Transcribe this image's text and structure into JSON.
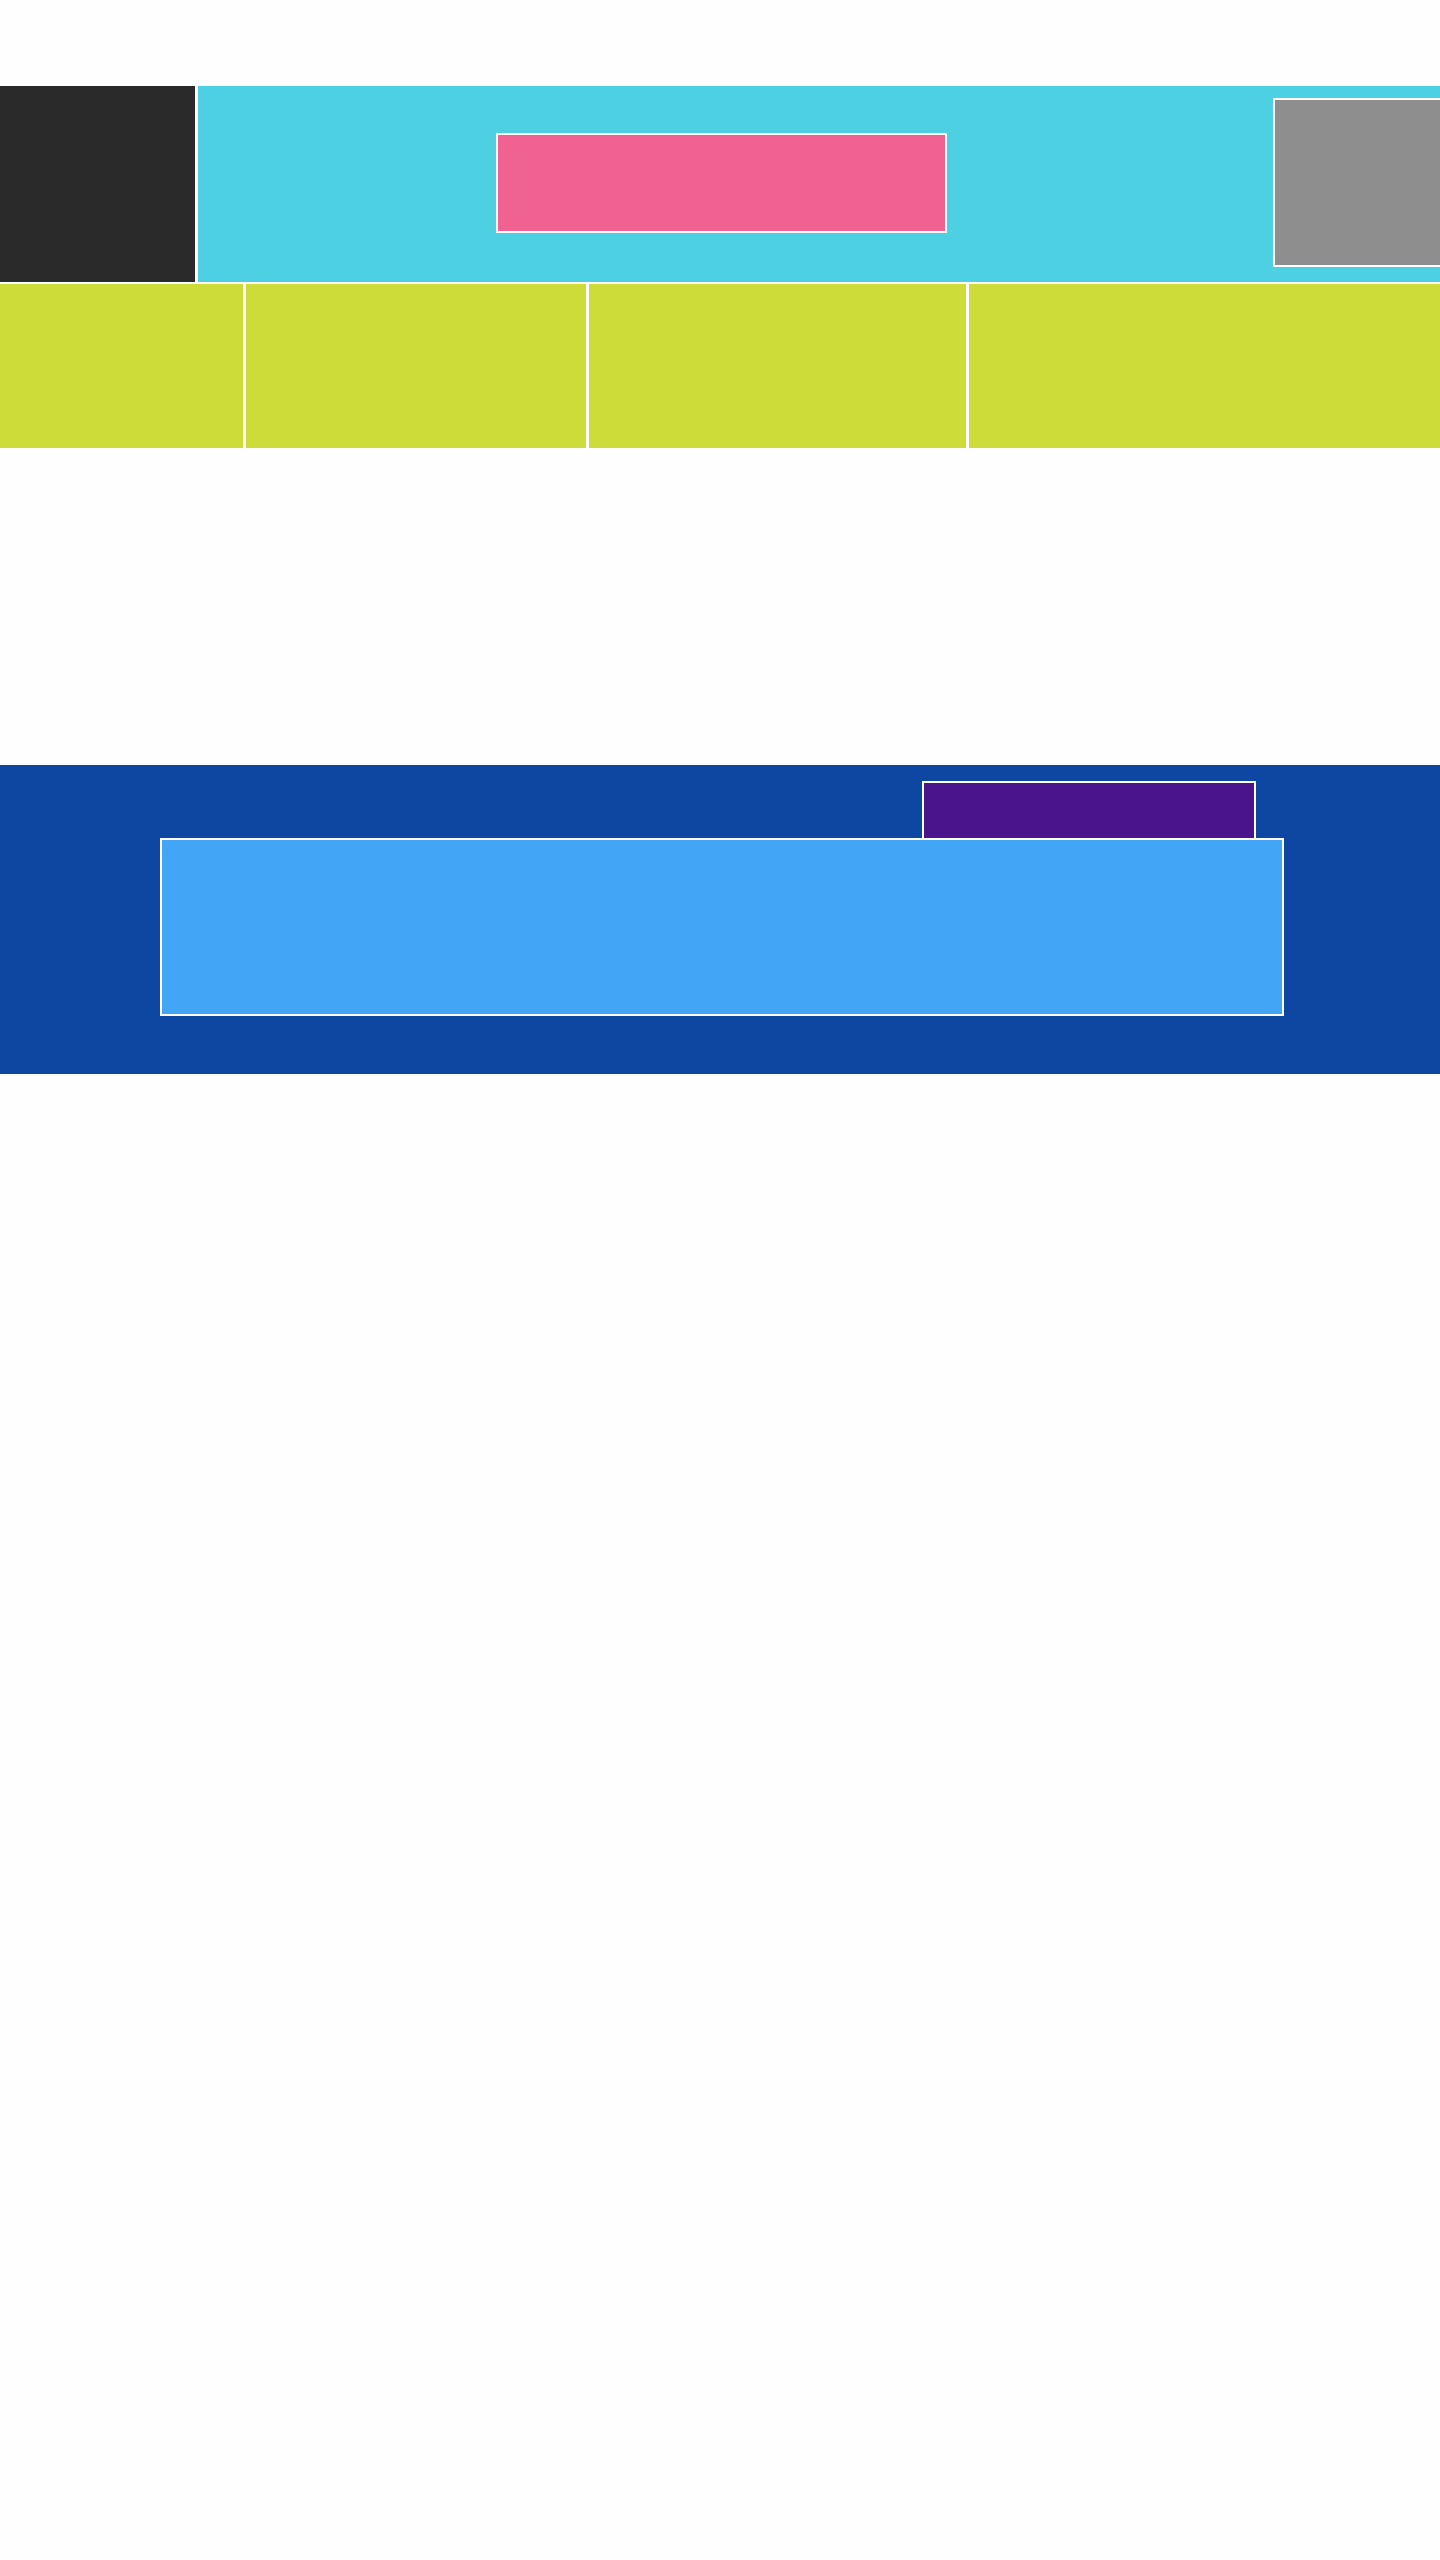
{
  "colors": {
    "page_background": "#fefefe",
    "header_background": "#4dd0e1",
    "logo_block": "#2a2a2a",
    "center_banner": "#f06292",
    "thumbnail": "#8e8e8e",
    "nav_row": "#cddc39",
    "hero_background": "#0d47a1",
    "hero_tab": "#4a148c",
    "hero_card": "#42a5f5",
    "outline": "#ffffff"
  },
  "header": {
    "logo_label": "",
    "banner_label": "",
    "thumbnail_label": ""
  },
  "nav": {
    "items": [
      {
        "label": ""
      },
      {
        "label": ""
      },
      {
        "label": ""
      },
      {
        "label": ""
      }
    ]
  },
  "hero": {
    "tab_label": "",
    "card_label": ""
  }
}
